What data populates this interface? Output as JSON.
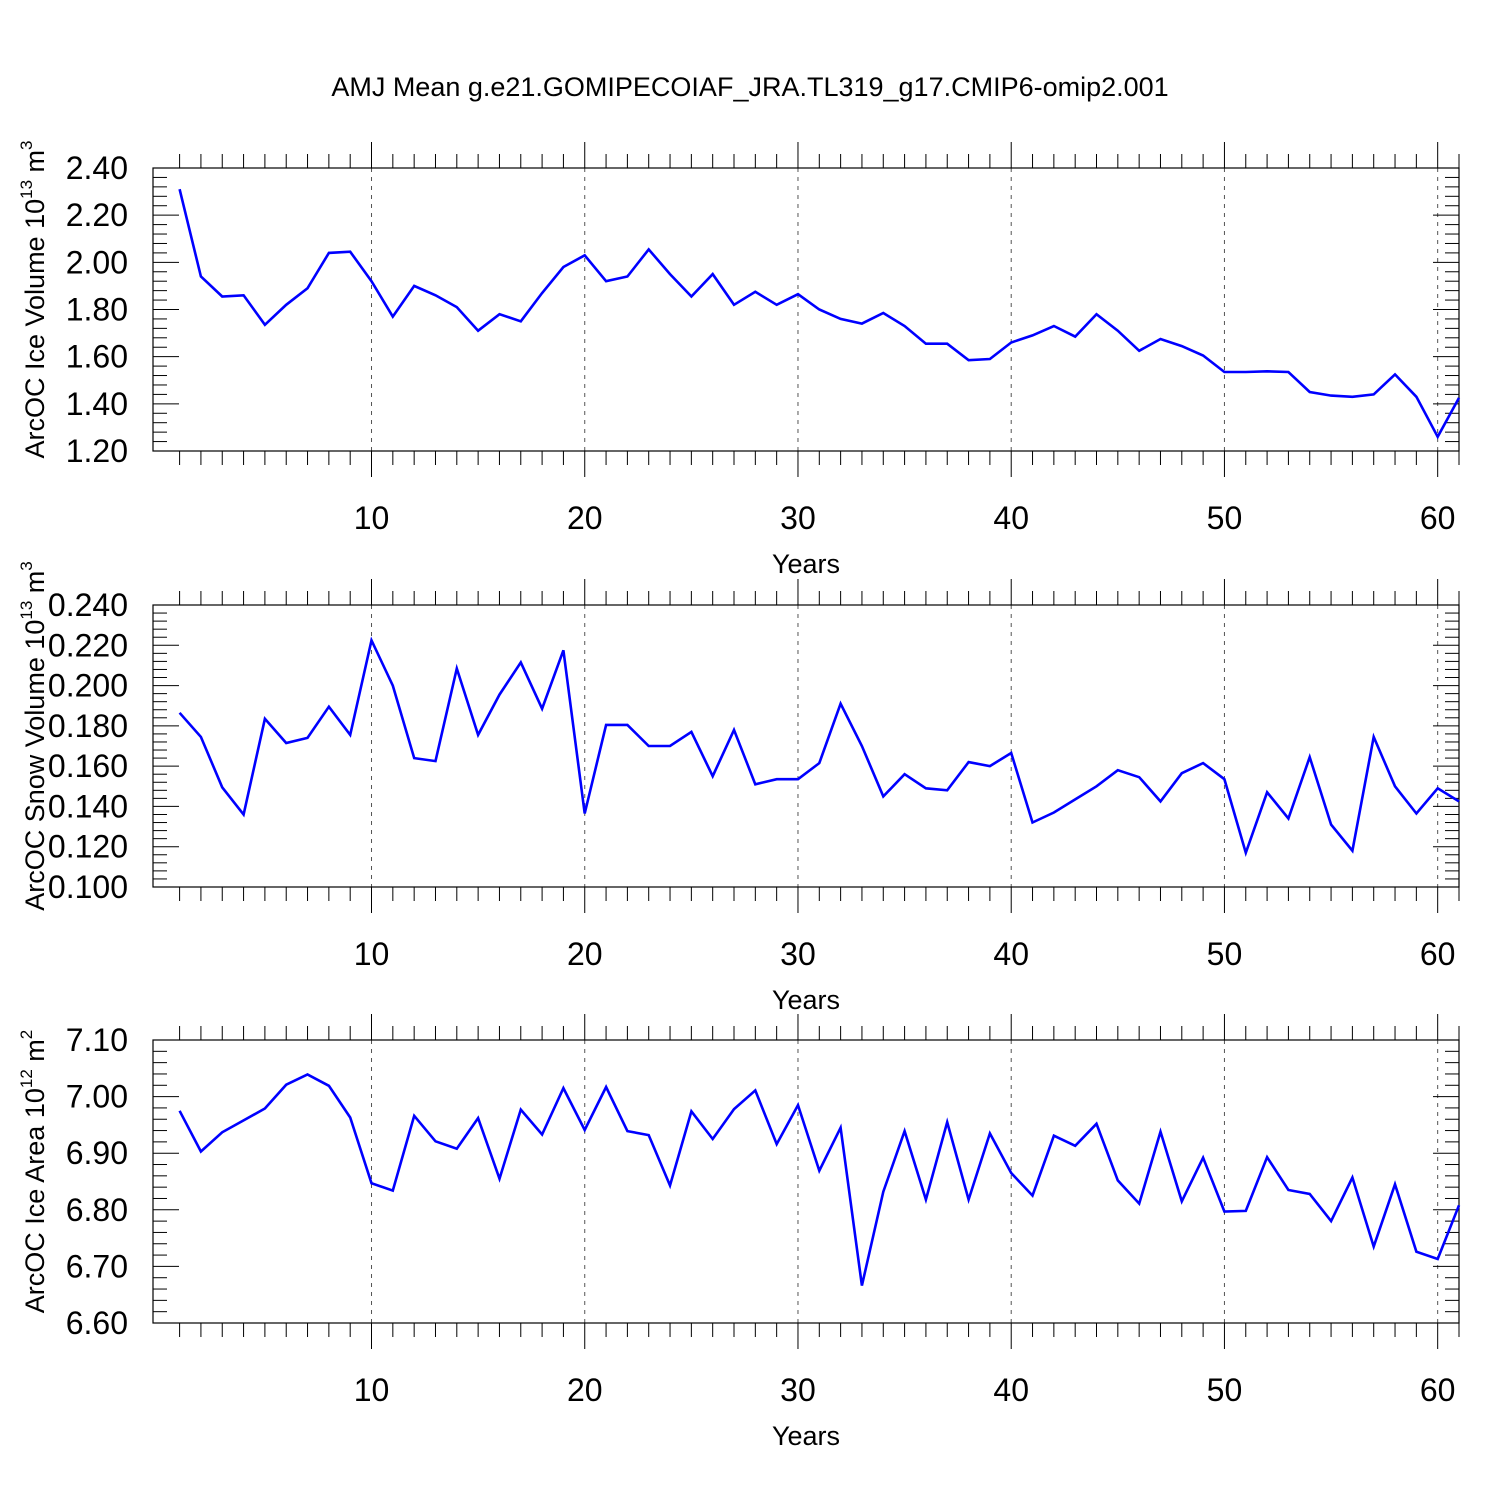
{
  "title": "AMJ Mean g.e21.GOMIPECOIAF_JRA.TL319_g17.CMIP6-omip2.001",
  "line_color": "#0000ff",
  "chart_data": [
    {
      "type": "line",
      "xlabel": "Years",
      "ylabel": "ArcOC Ice Volume 10",
      "ylabel_exp": "13",
      "ylabel_unit": " m",
      "ylabel_unit_exp": "3",
      "xlim": [
        1,
        61
      ],
      "ylim": [
        1.2,
        2.4
      ],
      "x_ticks": [
        10,
        20,
        30,
        40,
        50,
        60
      ],
      "x_tick_labels": [
        "10",
        "20",
        "30",
        "40",
        "50",
        "60"
      ],
      "y_ticks": [
        1.2,
        1.4,
        1.6,
        1.8,
        2.0,
        2.2,
        2.4
      ],
      "y_tick_labels": [
        "1.20",
        "1.40",
        "1.60",
        "1.80",
        "2.00",
        "2.20",
        "2.40"
      ],
      "grid": "dashed vertical at major x ticks",
      "x": [
        1,
        2,
        3,
        4,
        5,
        6,
        7,
        8,
        9,
        10,
        11,
        12,
        13,
        14,
        15,
        16,
        17,
        18,
        19,
        20,
        21,
        22,
        23,
        24,
        25,
        26,
        27,
        28,
        29,
        30,
        31,
        32,
        33,
        34,
        35,
        36,
        37,
        38,
        39,
        40,
        41,
        42,
        43,
        44,
        45,
        46,
        47,
        48,
        49,
        50,
        51,
        52,
        53,
        54,
        55,
        56,
        57,
        58,
        59,
        60,
        61
      ],
      "values": [
        2.31,
        1.94,
        1.855,
        1.86,
        1.735,
        1.82,
        1.89,
        2.04,
        2.045,
        1.92,
        1.77,
        1.9,
        1.86,
        1.81,
        1.71,
        1.78,
        1.75,
        1.87,
        1.98,
        2.03,
        1.92,
        1.94,
        2.055,
        1.95,
        1.855,
        1.95,
        1.82,
        1.875,
        1.82,
        1.865,
        1.8,
        1.76,
        1.74,
        1.785,
        1.73,
        1.655,
        1.655,
        1.585,
        1.59,
        1.66,
        1.69,
        1.73,
        1.685,
        1.78,
        1.71,
        1.625,
        1.675,
        1.645,
        1.605,
        1.535,
        1.535,
        1.538,
        1.535,
        1.45,
        1.435,
        1.43,
        1.44,
        1.525,
        1.43,
        1.26,
        1.425
      ]
    },
    {
      "type": "line",
      "xlabel": "Years",
      "ylabel": "ArcOC Snow Volume 10",
      "ylabel_exp": "13",
      "ylabel_unit": " m",
      "ylabel_unit_exp": "3",
      "xlim": [
        1,
        61
      ],
      "ylim": [
        0.1,
        0.24
      ],
      "x_ticks": [
        10,
        20,
        30,
        40,
        50,
        60
      ],
      "x_tick_labels": [
        "10",
        "20",
        "30",
        "40",
        "50",
        "60"
      ],
      "y_ticks": [
        0.1,
        0.12,
        0.14,
        0.16,
        0.18,
        0.2,
        0.22,
        0.24
      ],
      "y_tick_labels": [
        "0.100",
        "0.120",
        "0.140",
        "0.160",
        "0.180",
        "0.200",
        "0.220",
        "0.240"
      ],
      "grid": "dashed vertical at major x ticks",
      "x": [
        1,
        2,
        3,
        4,
        5,
        6,
        7,
        8,
        9,
        10,
        11,
        12,
        13,
        14,
        15,
        16,
        17,
        18,
        19,
        20,
        21,
        22,
        23,
        24,
        25,
        26,
        27,
        28,
        29,
        30,
        31,
        32,
        33,
        34,
        35,
        36,
        37,
        38,
        39,
        40,
        41,
        42,
        43,
        44,
        45,
        46,
        47,
        48,
        49,
        50,
        51,
        52,
        53,
        54,
        55,
        56,
        57,
        58,
        59,
        60,
        61
      ],
      "values": [
        0.1865,
        0.1745,
        0.1495,
        0.136,
        0.1835,
        0.1715,
        0.174,
        0.1895,
        0.1755,
        0.2225,
        0.2,
        0.164,
        0.1625,
        0.2085,
        0.1755,
        0.1955,
        0.2115,
        0.1885,
        0.2175,
        0.1365,
        0.1805,
        0.1805,
        0.17,
        0.17,
        0.177,
        0.155,
        0.178,
        0.151,
        0.1535,
        0.1535,
        0.1615,
        0.191,
        0.17,
        0.145,
        0.156,
        0.149,
        0.148,
        0.162,
        0.16,
        0.1665,
        0.132,
        0.137,
        0.1435,
        0.15,
        0.158,
        0.1545,
        0.1425,
        0.1565,
        0.1615,
        0.1535,
        0.117,
        0.147,
        0.134,
        0.1645,
        0.131,
        0.118,
        0.1745,
        0.15,
        0.1365,
        0.149,
        0.1425
      ]
    },
    {
      "type": "line",
      "xlabel": "Years",
      "ylabel": "ArcOC Ice Area 10",
      "ylabel_exp": "12",
      "ylabel_unit": " m",
      "ylabel_unit_exp": "2",
      "xlim": [
        1,
        61
      ],
      "ylim": [
        6.6,
        7.1
      ],
      "x_ticks": [
        10,
        20,
        30,
        40,
        50,
        60
      ],
      "x_tick_labels": [
        "10",
        "20",
        "30",
        "40",
        "50",
        "60"
      ],
      "y_ticks": [
        6.6,
        6.7,
        6.8,
        6.9,
        7.0,
        7.1
      ],
      "y_tick_labels": [
        "6.60",
        "6.70",
        "6.80",
        "6.90",
        "7.00",
        "7.10"
      ],
      "grid": "dashed vertical at major x ticks",
      "x": [
        1,
        2,
        3,
        4,
        5,
        6,
        7,
        8,
        9,
        10,
        11,
        12,
        13,
        14,
        15,
        16,
        17,
        18,
        19,
        20,
        21,
        22,
        23,
        24,
        25,
        26,
        27,
        28,
        29,
        30,
        31,
        32,
        33,
        34,
        35,
        36,
        37,
        38,
        39,
        40,
        41,
        42,
        43,
        44,
        45,
        46,
        47,
        48,
        49,
        50,
        51,
        52,
        53,
        54,
        55,
        56,
        57,
        58,
        59,
        60,
        61
      ],
      "values": [
        6.975,
        6.903,
        6.937,
        6.958,
        6.979,
        7.021,
        7.039,
        7.019,
        6.963,
        6.847,
        6.834,
        6.966,
        6.921,
        6.908,
        6.962,
        6.855,
        6.977,
        6.933,
        7.015,
        6.941,
        7.017,
        6.939,
        6.932,
        6.843,
        6.974,
        6.925,
        6.978,
        7.011,
        6.916,
        6.985,
        6.869,
        6.945,
        6.666,
        6.832,
        6.939,
        6.818,
        6.955,
        6.818,
        6.935,
        6.865,
        6.825,
        6.931,
        6.913,
        6.952,
        6.852,
        6.811,
        6.938,
        6.815,
        6.892,
        6.797,
        6.798,
        6.893,
        6.835,
        6.828,
        6.78,
        6.857,
        6.735,
        6.845,
        6.726,
        6.713,
        6.808
      ]
    }
  ]
}
